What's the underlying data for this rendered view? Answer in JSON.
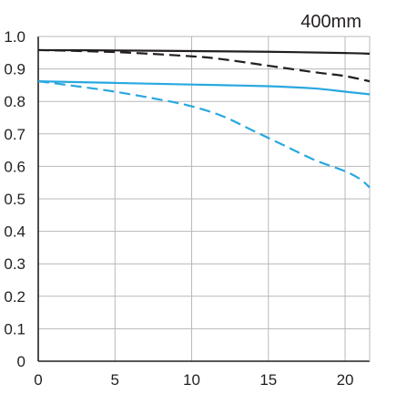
{
  "chart_data": {
    "type": "line",
    "title": "400mm",
    "xlabel": "",
    "ylabel": "",
    "xlim": [
      0,
      21.6
    ],
    "ylim": [
      0,
      1.0
    ],
    "x_ticks": [
      0,
      5,
      10,
      15,
      20
    ],
    "y_ticks": [
      0,
      0.1,
      0.2,
      0.3,
      0.4,
      0.5,
      0.6,
      0.7,
      0.8,
      0.9,
      1.0
    ],
    "x_tick_labels": [
      "0",
      "5",
      "10",
      "15",
      "20"
    ],
    "y_tick_labels": [
      "0",
      "0.1",
      "0.2",
      "0.3",
      "0.4",
      "0.5",
      "0.6",
      "0.7",
      "0.8",
      "0.9",
      "1.0"
    ],
    "grid": true,
    "series": [
      {
        "color": "#231f20",
        "style": "solid",
        "x": [
          0,
          5,
          10,
          15,
          20,
          21.6
        ],
        "y": [
          0.958,
          0.957,
          0.955,
          0.953,
          0.949,
          0.947
        ]
      },
      {
        "color": "#231f20",
        "style": "dashed",
        "x": [
          0,
          5,
          10,
          12,
          15,
          18,
          20,
          21.6
        ],
        "y": [
          0.958,
          0.952,
          0.939,
          0.93,
          0.91,
          0.89,
          0.878,
          0.862
        ]
      },
      {
        "color": "#29a8e0",
        "style": "solid",
        "x": [
          0,
          5,
          10,
          15,
          18,
          20,
          21.6
        ],
        "y": [
          0.862,
          0.857,
          0.852,
          0.847,
          0.84,
          0.83,
          0.822
        ]
      },
      {
        "color": "#29a8e0",
        "style": "dashed",
        "x": [
          0,
          2,
          5,
          8,
          10,
          12,
          14,
          16,
          18,
          20,
          21,
          21.6
        ],
        "y": [
          0.862,
          0.85,
          0.83,
          0.805,
          0.785,
          0.755,
          0.71,
          0.665,
          0.62,
          0.585,
          0.56,
          0.535
        ]
      }
    ]
  }
}
